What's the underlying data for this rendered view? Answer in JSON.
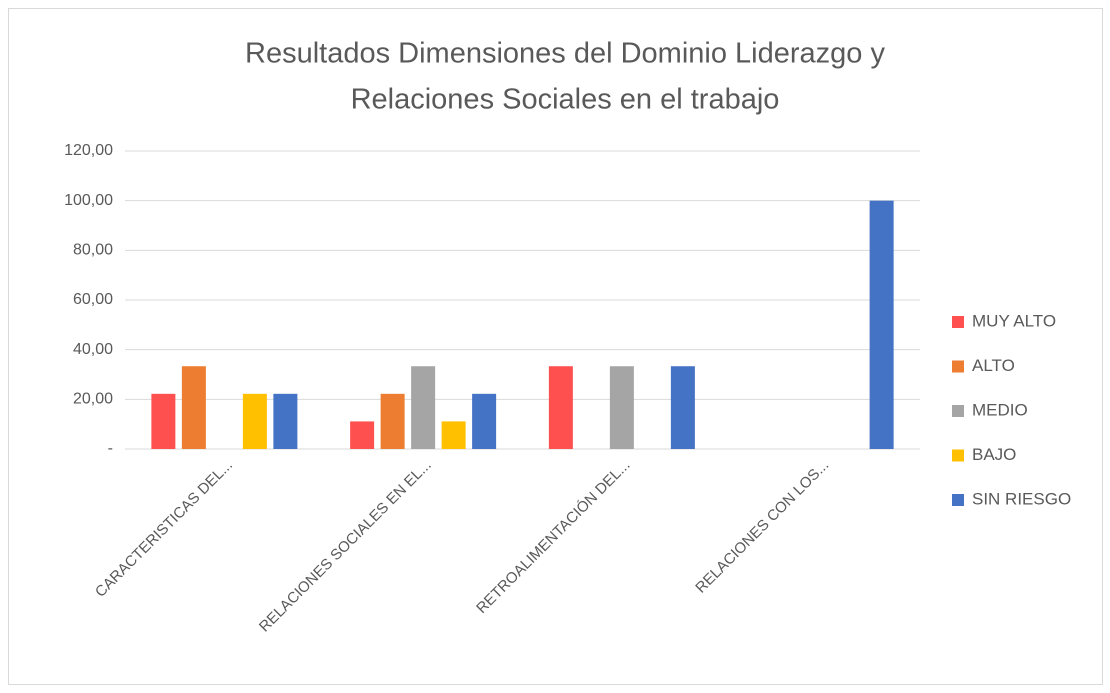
{
  "chart_data": {
    "type": "bar",
    "title": [
      "Resultados Dimensiones del Dominio Liderazgo y",
      "Relaciones Sociales en el trabajo"
    ],
    "categories": [
      "CARACTERISTICAS DEL...",
      "RELACIONES SOCIALES EN EL...",
      "RETROALIMENTACIÓN DEL...",
      "RELACIONES CON LOS..."
    ],
    "series": [
      {
        "name": "MUY ALTO",
        "color": "#ff5050",
        "values": [
          22.22,
          11.11,
          33.33,
          0
        ]
      },
      {
        "name": "ALTO",
        "color": "#ed7d31",
        "values": [
          33.33,
          22.22,
          0,
          0
        ]
      },
      {
        "name": "MEDIO",
        "color": "#a5a5a5",
        "values": [
          0,
          33.33,
          33.33,
          0
        ]
      },
      {
        "name": "BAJO",
        "color": "#ffc000",
        "values": [
          22.22,
          11.11,
          0,
          0
        ]
      },
      {
        "name": "SIN RIESGO",
        "color": "#4472c4",
        "values": [
          22.22,
          22.22,
          33.33,
          100
        ]
      }
    ],
    "ylim": [
      0,
      120
    ],
    "yticks": [
      {
        "value": 0,
        "label": "-"
      },
      {
        "value": 20,
        "label": "20,00"
      },
      {
        "value": 40,
        "label": "40,00"
      },
      {
        "value": 60,
        "label": "60,00"
      },
      {
        "value": 80,
        "label": "80,00"
      },
      {
        "value": 100,
        "label": "100,00"
      },
      {
        "value": 120,
        "label": "120,00"
      }
    ],
    "grid": true,
    "legend": "right"
  }
}
